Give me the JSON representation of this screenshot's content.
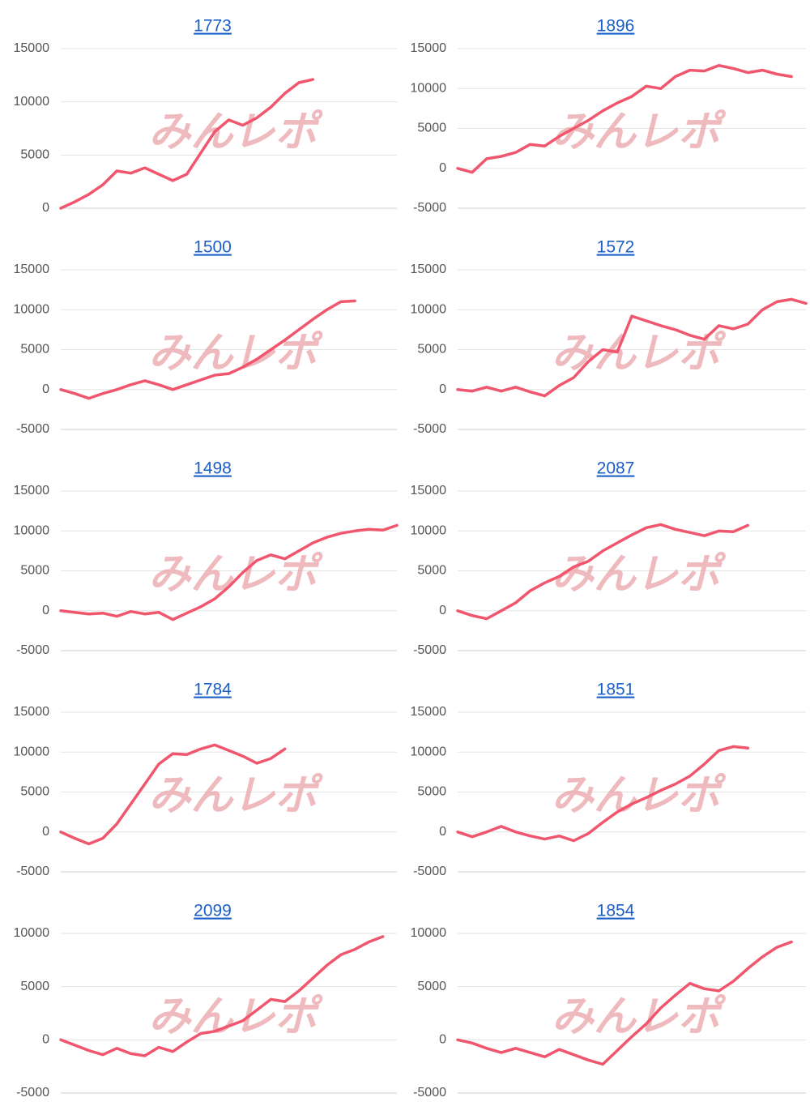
{
  "watermark": "みんレポ",
  "chart_data": [
    {
      "type": "line",
      "title": "1773",
      "color": "#f0566d",
      "grid": true,
      "ylim": [
        0,
        15000
      ],
      "yticks": [
        0,
        5000,
        10000,
        15000
      ],
      "values": [
        0,
        600,
        1300,
        2200,
        3500,
        3300,
        3800,
        3200,
        2600,
        3200,
        5200,
        7200,
        8300,
        7800,
        8500,
        9500,
        10800,
        11800,
        12100,
        null,
        null,
        null,
        null,
        null,
        null
      ]
    },
    {
      "type": "line",
      "title": "1896",
      "color": "#f0566d",
      "grid": true,
      "ylim": [
        -5000,
        15000
      ],
      "yticks": [
        -5000,
        0,
        5000,
        10000,
        15000
      ],
      "values": [
        0,
        -500,
        1200,
        1500,
        2000,
        3000,
        2800,
        4000,
        5000,
        6000,
        7200,
        8200,
        9000,
        10300,
        10000,
        11500,
        12300,
        12200,
        12900,
        12500,
        12000,
        12300,
        11800,
        11500,
        null
      ]
    },
    {
      "type": "line",
      "title": "1500",
      "color": "#f0566d",
      "grid": true,
      "ylim": [
        -5000,
        15000
      ],
      "yticks": [
        -5000,
        0,
        5000,
        10000,
        15000
      ],
      "values": [
        0,
        -500,
        -1100,
        -500,
        0,
        600,
        1100,
        600,
        0,
        600,
        1200,
        1800,
        2000,
        2800,
        3800,
        5000,
        6200,
        7500,
        8800,
        10000,
        11000,
        11100,
        null,
        null,
        null
      ]
    },
    {
      "type": "line",
      "title": "1572",
      "color": "#f0566d",
      "grid": true,
      "ylim": [
        -5000,
        15000
      ],
      "yticks": [
        -5000,
        0,
        5000,
        10000,
        15000
      ],
      "values": [
        0,
        -200,
        300,
        -200,
        300,
        -300,
        -800,
        500,
        1500,
        3500,
        5000,
        4700,
        9200,
        8600,
        8000,
        7500,
        6800,
        6300,
        8000,
        7600,
        8200,
        10000,
        11000,
        11300,
        10800
      ]
    },
    {
      "type": "line",
      "title": "1498",
      "color": "#f0566d",
      "grid": true,
      "ylim": [
        -5000,
        15000
      ],
      "yticks": [
        -5000,
        0,
        5000,
        10000,
        15000
      ],
      "values": [
        0,
        -200,
        -400,
        -300,
        -700,
        -100,
        -400,
        -200,
        -1100,
        -300,
        500,
        1500,
        3000,
        4800,
        6300,
        7000,
        6500,
        7500,
        8500,
        9200,
        9700,
        10000,
        10200,
        10100,
        10700
      ]
    },
    {
      "type": "line",
      "title": "2087",
      "color": "#f0566d",
      "grid": true,
      "ylim": [
        -5000,
        15000
      ],
      "yticks": [
        -5000,
        0,
        5000,
        10000,
        15000
      ],
      "values": [
        0,
        -600,
        -1000,
        0,
        1000,
        2500,
        3500,
        4300,
        5500,
        6200,
        7500,
        8500,
        9500,
        10400,
        10800,
        10200,
        9800,
        9400,
        10000,
        9900,
        10700,
        null,
        null,
        null,
        null
      ]
    },
    {
      "type": "line",
      "title": "1784",
      "color": "#f0566d",
      "grid": true,
      "ylim": [
        -5000,
        15000
      ],
      "yticks": [
        -5000,
        0,
        5000,
        10000,
        15000
      ],
      "values": [
        0,
        -800,
        -1500,
        -800,
        1000,
        3500,
        6000,
        8500,
        9800,
        9700,
        10400,
        10900,
        10200,
        9500,
        8600,
        9200,
        10400,
        null,
        null,
        null,
        null,
        null,
        null,
        null,
        null
      ]
    },
    {
      "type": "line",
      "title": "1851",
      "color": "#f0566d",
      "grid": true,
      "ylim": [
        -5000,
        15000
      ],
      "yticks": [
        -5000,
        0,
        5000,
        10000,
        15000
      ],
      "values": [
        0,
        -600,
        0,
        700,
        0,
        -500,
        -900,
        -500,
        -1100,
        -200,
        1200,
        2500,
        3500,
        4300,
        5200,
        6000,
        7000,
        8500,
        10200,
        10700,
        10500,
        null,
        null,
        null,
        null
      ]
    },
    {
      "type": "line",
      "title": "2099",
      "color": "#f0566d",
      "grid": true,
      "ylim": [
        -5000,
        10000
      ],
      "yticks": [
        -5000,
        0,
        5000,
        10000
      ],
      "values": [
        0,
        -500,
        -1000,
        -1400,
        -800,
        -1300,
        -1500,
        -700,
        -1100,
        -200,
        600,
        800,
        1300,
        1800,
        2800,
        3800,
        3600,
        4600,
        5800,
        7000,
        8000,
        8500,
        9200,
        9700,
        null
      ]
    },
    {
      "type": "line",
      "title": "1854",
      "color": "#f0566d",
      "grid": true,
      "ylim": [
        -5000,
        10000
      ],
      "yticks": [
        -5000,
        0,
        5000,
        10000
      ],
      "values": [
        0,
        -300,
        -800,
        -1200,
        -800,
        -1200,
        -1600,
        -900,
        -1400,
        -1900,
        -2300,
        -1000,
        300,
        1500,
        3000,
        4200,
        5300,
        4800,
        4600,
        5500,
        6700,
        7800,
        8700,
        9200,
        null
      ]
    }
  ]
}
